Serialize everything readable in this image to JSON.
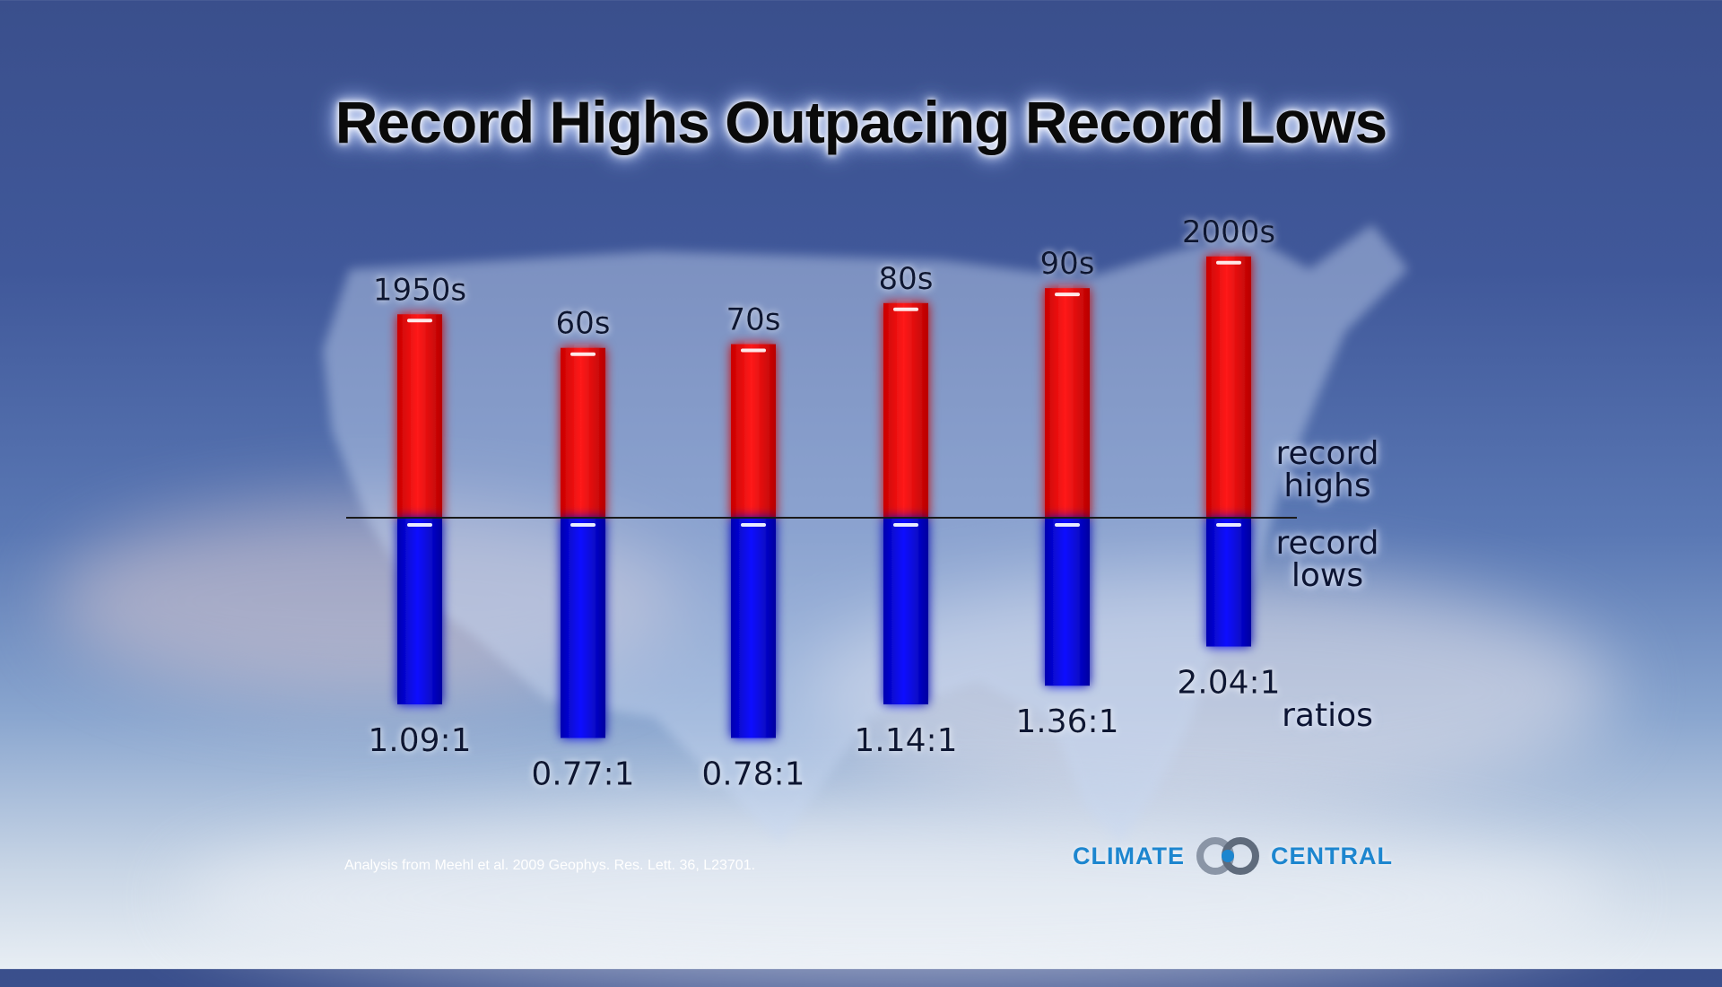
{
  "title": "Record Highs Outpacing Record Lows",
  "side_labels": {
    "highs_line1": "record",
    "highs_line2": "highs",
    "lows_line1": "record",
    "lows_line2": "lows",
    "ratios": "ratios"
  },
  "source_note": "Analysis from Meehl et al. 2009 Geophys. Res. Lett. 36, L23701.",
  "logo": {
    "left_word": "CLIMATE",
    "right_word": "CENTRAL",
    "color": "#1d86cf"
  },
  "colors": {
    "highs": "#ff0000",
    "lows": "#0000ee",
    "baseline": "#1a1a1a"
  },
  "chart_data": {
    "type": "bar",
    "title": "Record Highs Outpacing Record Lows",
    "categories": [
      "1950s",
      "60s",
      "70s",
      "80s",
      "90s",
      "2000s"
    ],
    "series": [
      {
        "name": "record highs",
        "values": [
          1.09,
          0.91,
          0.93,
          1.15,
          1.23,
          1.4
        ]
      },
      {
        "name": "record lows",
        "values": [
          1.0,
          1.18,
          1.18,
          1.0,
          0.9,
          0.69
        ]
      }
    ],
    "ratio_labels": [
      "1.09:1",
      "0.77:1",
      "0.78:1",
      "1.14:1",
      "1.36:1",
      "2.04:1"
    ],
    "grid": false,
    "legend": "right"
  }
}
